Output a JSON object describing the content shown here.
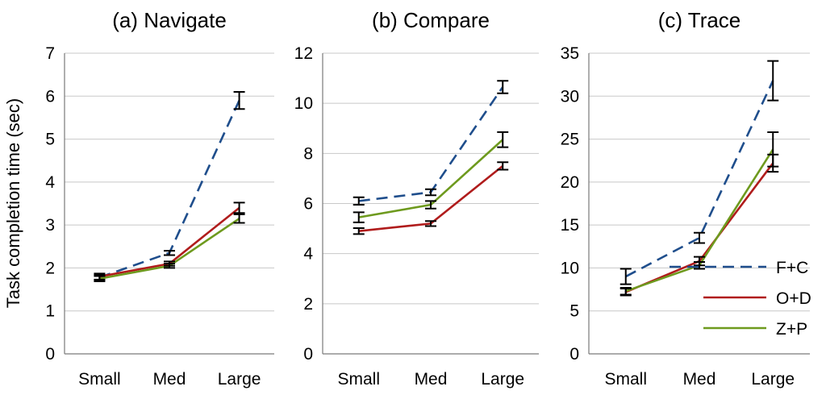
{
  "figure": {
    "ylabel": "Task completion time (sec)"
  },
  "series_styles": [
    {
      "name": "F+C",
      "color": "#1f4e8c",
      "dash": "14,8"
    },
    {
      "name": "O+D",
      "color": "#b01c1c",
      "dash": ""
    },
    {
      "name": "Z+P",
      "color": "#6e9a1e",
      "dash": ""
    }
  ],
  "chart_data": [
    {
      "type": "line",
      "title": "(a) Navigate",
      "categories": [
        "Small",
        "Med",
        "Large"
      ],
      "ylim": [
        0,
        7
      ],
      "yticks": [
        0,
        1,
        2,
        3,
        4,
        5,
        6,
        7
      ],
      "grid": true,
      "series": [
        {
          "name": "F+C",
          "values": [
            1.78,
            2.35,
            5.9
          ],
          "error": [
            0.06,
            0.05,
            0.2
          ]
        },
        {
          "name": "O+D",
          "values": [
            1.8,
            2.1,
            3.4
          ],
          "error": [
            0.07,
            0.05,
            0.12
          ]
        },
        {
          "name": "Z+P",
          "values": [
            1.75,
            2.05,
            3.15
          ],
          "error": [
            0.06,
            0.05,
            0.1
          ]
        }
      ]
    },
    {
      "type": "line",
      "title": "(b) Compare",
      "categories": [
        "Small",
        "Med",
        "Large"
      ],
      "ylim": [
        0,
        12
      ],
      "yticks": [
        0,
        2,
        4,
        6,
        8,
        10,
        12
      ],
      "grid": true,
      "series": [
        {
          "name": "F+C",
          "values": [
            6.1,
            6.45,
            10.65
          ],
          "error": [
            0.15,
            0.12,
            0.25
          ]
        },
        {
          "name": "O+D",
          "values": [
            4.9,
            5.2,
            7.5
          ],
          "error": [
            0.12,
            0.1,
            0.15
          ]
        },
        {
          "name": "Z+P",
          "values": [
            5.45,
            5.95,
            8.55
          ],
          "error": [
            0.2,
            0.15,
            0.3
          ]
        }
      ]
    },
    {
      "type": "line",
      "title": "(c) Trace",
      "categories": [
        "Small",
        "Med",
        "Large"
      ],
      "ylim": [
        0,
        35
      ],
      "yticks": [
        0,
        5,
        10,
        15,
        20,
        25,
        30,
        35
      ],
      "grid": true,
      "legend": {
        "position": "bottom-right",
        "entries": [
          "F+C",
          "O+D",
          "Z+P"
        ]
      },
      "series": [
        {
          "name": "F+C",
          "values": [
            9.0,
            13.5,
            31.8
          ],
          "error": [
            0.9,
            0.6,
            2.3
          ]
        },
        {
          "name": "O+D",
          "values": [
            7.2,
            10.8,
            22.2
          ],
          "error": [
            0.4,
            0.5,
            1.0
          ]
        },
        {
          "name": "Z+P",
          "values": [
            7.3,
            10.3,
            23.8
          ],
          "error": [
            0.4,
            0.4,
            2.0
          ]
        }
      ]
    }
  ]
}
